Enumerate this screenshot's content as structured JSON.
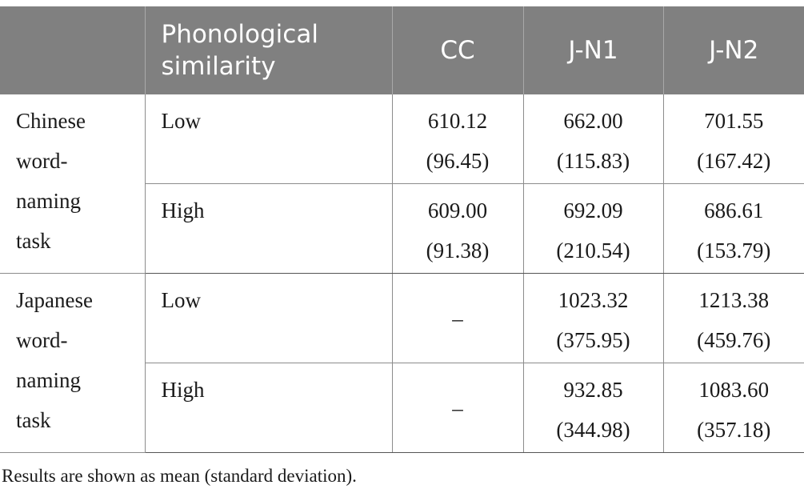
{
  "table": {
    "headers": [
      "",
      "Phonological similarity",
      "CC",
      "J-N1",
      "J-N2"
    ],
    "header_bg": "#808080",
    "groups": [
      {
        "task": "Chinese word-naming task",
        "task_lines": [
          "Chinese",
          "word-",
          "naming",
          "task"
        ],
        "rows": [
          {
            "similarity": "Low",
            "cc": [
              "610.12",
              "(96.45)"
            ],
            "jn1": [
              "662.00",
              "(115.83)"
            ],
            "jn2": [
              "701.55",
              "(167.42)"
            ]
          },
          {
            "similarity": "High",
            "cc": [
              "609.00",
              "(91.38)"
            ],
            "jn1": [
              "692.09",
              "(210.54)"
            ],
            "jn2": [
              "686.61",
              "(153.79)"
            ]
          }
        ]
      },
      {
        "task": "Japanese word-naming task",
        "task_lines": [
          "Japanese",
          "word-",
          "naming",
          "task"
        ],
        "rows": [
          {
            "similarity": "Low",
            "cc": "–",
            "jn1": [
              "1023.32",
              "(375.95)"
            ],
            "jn2": [
              "1213.38",
              "(459.76)"
            ]
          },
          {
            "similarity": "High",
            "cc": "–",
            "jn1": [
              "932.85",
              "(344.98)"
            ],
            "jn2": [
              "1083.60",
              "(357.18)"
            ]
          }
        ]
      }
    ]
  },
  "footnote": "Results are shown as mean (standard deviation)."
}
